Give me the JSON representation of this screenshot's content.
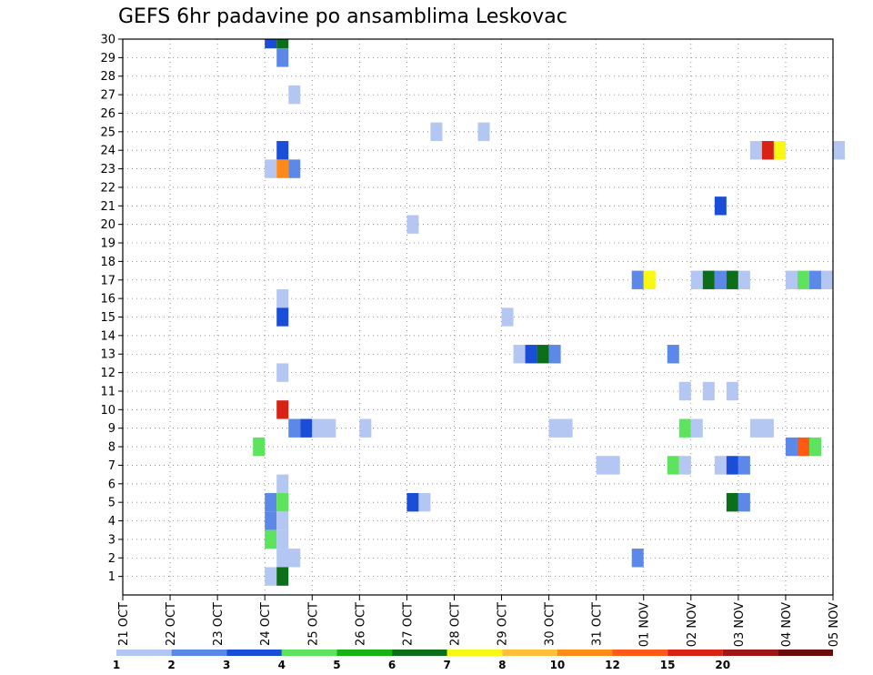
{
  "chart_data": {
    "type": "heatmap",
    "title": "GEFS 6hr padavine po ansamblima Leskovac",
    "xlabel": "",
    "ylabel": "",
    "grid": true,
    "x_ticks": [
      "21 OCT",
      "22 OCT",
      "23 OCT",
      "24 OCT",
      "25 OCT",
      "26 OCT",
      "27 OCT",
      "28 OCT",
      "29 OCT",
      "30 OCT",
      "31 OCT",
      "01 NOV",
      "02 NOV",
      "03 NOV",
      "04 NOV",
      "05 NOV"
    ],
    "x_range_days": [
      0,
      15
    ],
    "y_ticks": [
      1,
      2,
      3,
      4,
      5,
      6,
      7,
      8,
      9,
      10,
      11,
      12,
      13,
      14,
      15,
      16,
      17,
      18,
      19,
      20,
      21,
      22,
      23,
      24,
      25,
      26,
      27,
      28,
      29,
      30
    ],
    "y_range": [
      0,
      30
    ],
    "colorbar": {
      "levels": [
        "1",
        "2",
        "3",
        "4",
        "5",
        "6",
        "7",
        "8",
        "10",
        "12",
        "15",
        "20"
      ],
      "colors": [
        "#b4c6f2",
        "#5c88e8",
        "#1a4ed8",
        "#5ee35e",
        "#14b414",
        "#0c6e18",
        "#f8f814",
        "#ffbf3c",
        "#ff8a1a",
        "#ff5a14",
        "#d82314",
        "#a01414",
        "#6a0a0a"
      ]
    },
    "cells": [
      {
        "member": 30,
        "start": "24 OCT 00z",
        "end": "24 OCT 06z",
        "bin": 2
      },
      {
        "member": 30,
        "start": "24 OCT 06z",
        "end": "24 OCT 12z",
        "bin": 5
      },
      {
        "member": 29,
        "start": "24 OCT 06z",
        "end": "24 OCT 12z",
        "bin": 1
      },
      {
        "member": 27,
        "start": "24 OCT 12z",
        "end": "24 OCT 18z",
        "bin": 0
      },
      {
        "member": 25,
        "start": "27 OCT 12z",
        "end": "27 OCT 18z",
        "bin": 0
      },
      {
        "member": 25,
        "start": "28 OCT 12z",
        "end": "28 OCT 18z",
        "bin": 0
      },
      {
        "member": 24,
        "start": "24 OCT 06z",
        "end": "24 OCT 12z",
        "bin": 2
      },
      {
        "member": 24,
        "start": "03 NOV 06z",
        "end": "03 NOV 12z",
        "bin": 0
      },
      {
        "member": 24,
        "start": "03 NOV 12z",
        "end": "03 NOV 18z",
        "bin": 10
      },
      {
        "member": 24,
        "start": "03 NOV 18z",
        "end": "04 NOV 00z",
        "bin": 6
      },
      {
        "member": 24,
        "start": "05 NOV 00z",
        "end": "05 NOV 06z",
        "bin": 0
      },
      {
        "member": 23,
        "start": "24 OCT 00z",
        "end": "24 OCT 06z",
        "bin": 0
      },
      {
        "member": 23,
        "start": "24 OCT 06z",
        "end": "24 OCT 12z",
        "bin": 8
      },
      {
        "member": 23,
        "start": "24 OCT 12z",
        "end": "24 OCT 18z",
        "bin": 1
      },
      {
        "member": 21,
        "start": "02 NOV 12z",
        "end": "02 NOV 18z",
        "bin": 2
      },
      {
        "member": 20,
        "start": "27 OCT 00z",
        "end": "27 OCT 06z",
        "bin": 0
      },
      {
        "member": 17,
        "start": "31 OCT 18z",
        "end": "01 NOV 00z",
        "bin": 1
      },
      {
        "member": 17,
        "start": "01 NOV 00z",
        "end": "01 NOV 06z",
        "bin": 6
      },
      {
        "member": 17,
        "start": "02 NOV 00z",
        "end": "02 NOV 06z",
        "bin": 0
      },
      {
        "member": 17,
        "start": "02 NOV 06z",
        "end": "02 NOV 12z",
        "bin": 5
      },
      {
        "member": 17,
        "start": "02 NOV 12z",
        "end": "02 NOV 18z",
        "bin": 1
      },
      {
        "member": 17,
        "start": "02 NOV 18z",
        "end": "03 NOV 00z",
        "bin": 5
      },
      {
        "member": 17,
        "start": "03 NOV 00z",
        "end": "03 NOV 06z",
        "bin": 0
      },
      {
        "member": 17,
        "start": "04 NOV 00z",
        "end": "04 NOV 06z",
        "bin": 0
      },
      {
        "member": 17,
        "start": "04 NOV 06z",
        "end": "04 NOV 12z",
        "bin": 3
      },
      {
        "member": 17,
        "start": "04 NOV 12z",
        "end": "04 NOV 18z",
        "bin": 1
      },
      {
        "member": 17,
        "start": "04 NOV 18z",
        "end": "05 NOV 00z",
        "bin": 0
      },
      {
        "member": 16,
        "start": "24 OCT 06z",
        "end": "24 OCT 12z",
        "bin": 0
      },
      {
        "member": 15,
        "start": "24 OCT 06z",
        "end": "24 OCT 12z",
        "bin": 2
      },
      {
        "member": 15,
        "start": "29 OCT 00z",
        "end": "29 OCT 06z",
        "bin": 0
      },
      {
        "member": 13,
        "start": "29 OCT 06z",
        "end": "29 OCT 12z",
        "bin": 0
      },
      {
        "member": 13,
        "start": "29 OCT 12z",
        "end": "29 OCT 18z",
        "bin": 2
      },
      {
        "member": 13,
        "start": "29 OCT 18z",
        "end": "30 OCT 00z",
        "bin": 5
      },
      {
        "member": 13,
        "start": "30 OCT 00z",
        "end": "30 OCT 06z",
        "bin": 1
      },
      {
        "member": 13,
        "start": "01 NOV 12z",
        "end": "01 NOV 18z",
        "bin": 1
      },
      {
        "member": 12,
        "start": "24 OCT 06z",
        "end": "24 OCT 12z",
        "bin": 0
      },
      {
        "member": 11,
        "start": "01 NOV 18z",
        "end": "02 NOV 00z",
        "bin": 0
      },
      {
        "member": 11,
        "start": "02 NOV 06z",
        "end": "02 NOV 12z",
        "bin": 0
      },
      {
        "member": 11,
        "start": "02 NOV 18z",
        "end": "03 NOV 00z",
        "bin": 0
      },
      {
        "member": 10,
        "start": "24 OCT 06z",
        "end": "24 OCT 12z",
        "bin": 10
      },
      {
        "member": 9,
        "start": "30 OCT 00z",
        "end": "30 OCT 12z",
        "bin": 0
      },
      {
        "member": 9,
        "start": "24 OCT 12z",
        "end": "24 OCT 18z",
        "bin": 1
      },
      {
        "member": 9,
        "start": "24 OCT 18z",
        "end": "25 OCT 00z",
        "bin": 2
      },
      {
        "member": 9,
        "start": "25 OCT 00z",
        "end": "25 OCT 12z",
        "bin": 0
      },
      {
        "member": 9,
        "start": "26 OCT 00z",
        "end": "26 OCT 06z",
        "bin": 0
      },
      {
        "member": 9,
        "start": "01 NOV 18z",
        "end": "02 NOV 00z",
        "bin": 3
      },
      {
        "member": 9,
        "start": "02 NOV 00z",
        "end": "02 NOV 06z",
        "bin": 0
      },
      {
        "member": 9,
        "start": "03 NOV 06z",
        "end": "03 NOV 18z",
        "bin": 0
      },
      {
        "member": 8,
        "start": "23 OCT 18z",
        "end": "24 OCT 00z",
        "bin": 3
      },
      {
        "member": 8,
        "start": "04 NOV 00z",
        "end": "04 NOV 06z",
        "bin": 1
      },
      {
        "member": 8,
        "start": "04 NOV 06z",
        "end": "04 NOV 12z",
        "bin": 9
      },
      {
        "member": 8,
        "start": "04 NOV 12z",
        "end": "04 NOV 18z",
        "bin": 3
      },
      {
        "member": 7,
        "start": "31 OCT 00z",
        "end": "31 OCT 12z",
        "bin": 0
      },
      {
        "member": 7,
        "start": "01 NOV 12z",
        "end": "01 NOV 18z",
        "bin": 3
      },
      {
        "member": 7,
        "start": "01 NOV 18z",
        "end": "02 NOV 00z",
        "bin": 0
      },
      {
        "member": 7,
        "start": "02 NOV 12z",
        "end": "02 NOV 18z",
        "bin": 0
      },
      {
        "member": 7,
        "start": "02 NOV 18z",
        "end": "03 NOV 00z",
        "bin": 2
      },
      {
        "member": 7,
        "start": "03 NOV 00z",
        "end": "03 NOV 06z",
        "bin": 1
      },
      {
        "member": 6,
        "start": "24 OCT 06z",
        "end": "24 OCT 12z",
        "bin": 0
      },
      {
        "member": 5,
        "start": "24 OCT 00z",
        "end": "24 OCT 06z",
        "bin": 1
      },
      {
        "member": 5,
        "start": "24 OCT 06z",
        "end": "24 OCT 12z",
        "bin": 3
      },
      {
        "member": 5,
        "start": "27 OCT 00z",
        "end": "27 OCT 06z",
        "bin": 2
      },
      {
        "member": 5,
        "start": "27 OCT 06z",
        "end": "27 OCT 12z",
        "bin": 0
      },
      {
        "member": 5,
        "start": "02 NOV 18z",
        "end": "03 NOV 00z",
        "bin": 5
      },
      {
        "member": 5,
        "start": "03 NOV 00z",
        "end": "03 NOV 06z",
        "bin": 1
      },
      {
        "member": 4,
        "start": "24 OCT 00z",
        "end": "24 OCT 06z",
        "bin": 1
      },
      {
        "member": 4,
        "start": "24 OCT 06z",
        "end": "24 OCT 12z",
        "bin": 0
      },
      {
        "member": 3,
        "start": "24 OCT 00z",
        "end": "24 OCT 06z",
        "bin": 3
      },
      {
        "member": 3,
        "start": "24 OCT 06z",
        "end": "24 OCT 12z",
        "bin": 0
      },
      {
        "member": 2,
        "start": "31 OCT 18z",
        "end": "01 NOV 00z",
        "bin": 1
      },
      {
        "member": 2,
        "start": "24 OCT 06z",
        "end": "24 OCT 18z",
        "bin": 0
      },
      {
        "member": 1,
        "start": "24 OCT 00z",
        "end": "24 OCT 06z",
        "bin": 0
      },
      {
        "member": 1,
        "start": "24 OCT 06z",
        "end": "24 OCT 12z",
        "bin": 5
      }
    ]
  }
}
